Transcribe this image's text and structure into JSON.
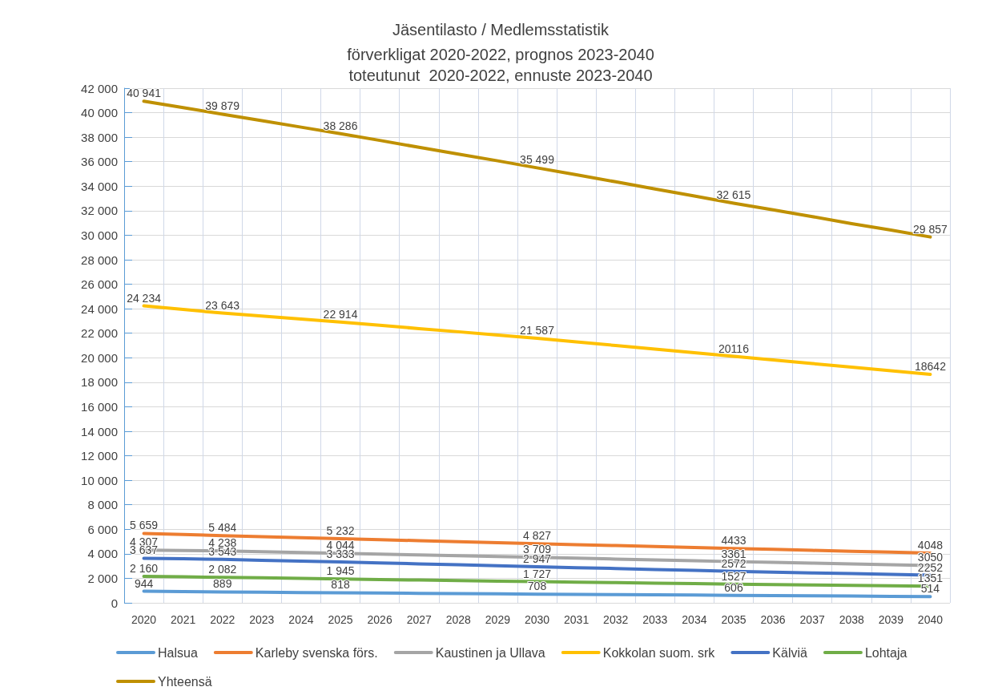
{
  "chart_data": {
    "type": "line",
    "title": "Jäsentilasto / Medlemsstatistik",
    "subtitle": "förverkligat 2020-2022, prognos 2023-2040\ntoteutunut  2020-2022, ennuste 2023-2040",
    "categories": [
      "2020",
      "2021",
      "2022",
      "2023",
      "2024",
      "2025",
      "2026",
      "2027",
      "2028",
      "2029",
      "2030",
      "2031",
      "2032",
      "2033",
      "2034",
      "2035",
      "2036",
      "2037",
      "2038",
      "2039",
      "2040"
    ],
    "series": [
      {
        "name": "Halsua",
        "color": "#5b9bd5",
        "values": [
          944,
          920,
          889,
          870,
          840,
          818,
          800,
          770,
          750,
          730,
          708,
          690,
          670,
          650,
          630,
          606,
          590,
          570,
          550,
          530,
          514
        ],
        "value_labels": [
          "944",
          null,
          "889",
          null,
          null,
          "818",
          null,
          null,
          null,
          null,
          "708",
          null,
          null,
          null,
          null,
          "606",
          null,
          null,
          null,
          null,
          "514"
        ]
      },
      {
        "name": "Karleby svenska förs.",
        "color": "#ed7d31",
        "values": [
          5659,
          5570,
          5484,
          5400,
          5320,
          5232,
          5150,
          5070,
          4990,
          4910,
          4827,
          4750,
          4670,
          4590,
          4510,
          4433,
          4360,
          4280,
          4200,
          4130,
          4048
        ],
        "value_labels": [
          "5 659",
          null,
          "5 484",
          null,
          null,
          "5 232",
          null,
          null,
          null,
          null,
          "4 827",
          null,
          null,
          null,
          null,
          "4433",
          null,
          null,
          null,
          null,
          "4048"
        ]
      },
      {
        "name": "Kaustinen ja Ullava",
        "color": "#a5a5a5",
        "values": [
          4307,
          4270,
          4238,
          4170,
          4110,
          4044,
          3980,
          3910,
          3840,
          3780,
          3709,
          3640,
          3570,
          3500,
          3430,
          3361,
          3300,
          3240,
          3170,
          3110,
          3050
        ],
        "value_labels": [
          "4 307",
          null,
          "4 238",
          null,
          null,
          "4 044",
          null,
          null,
          null,
          null,
          "3 709",
          null,
          null,
          null,
          null,
          "3361",
          null,
          null,
          null,
          null,
          "3050"
        ]
      },
      {
        "name": "Kokkolan suom. srk",
        "color": "#ffc000",
        "values": [
          24234,
          23940,
          23643,
          23400,
          23160,
          22914,
          22650,
          22380,
          22120,
          21850,
          21587,
          21290,
          21000,
          20700,
          20410,
          20116,
          19820,
          19530,
          19230,
          18940,
          18642
        ],
        "value_labels": [
          "24 234",
          null,
          "23 643",
          null,
          null,
          "22 914",
          null,
          null,
          null,
          null,
          "21 587",
          null,
          null,
          null,
          null,
          "20116",
          null,
          null,
          null,
          null,
          "18642"
        ]
      },
      {
        "name": "Kälviä",
        "color": "#4472c4",
        "values": [
          3637,
          3590,
          3543,
          3470,
          3400,
          3333,
          3260,
          3180,
          3100,
          3030,
          2947,
          2870,
          2800,
          2720,
          2650,
          2572,
          2510,
          2440,
          2380,
          2320,
          2252
        ],
        "value_labels": [
          "3 637",
          null,
          "3 543",
          null,
          null,
          "3 333",
          null,
          null,
          null,
          null,
          "2 947",
          null,
          null,
          null,
          null,
          "2572",
          null,
          null,
          null,
          null,
          "2252"
        ]
      },
      {
        "name": "Lohtaja",
        "color": "#70ad47",
        "values": [
          2160,
          2120,
          2082,
          2040,
          1990,
          1945,
          1900,
          1860,
          1820,
          1770,
          1727,
          1690,
          1650,
          1610,
          1570,
          1527,
          1490,
          1460,
          1420,
          1390,
          1351
        ],
        "value_labels": [
          "2 160",
          null,
          "2 082",
          null,
          null,
          "1 945",
          null,
          null,
          null,
          null,
          "1 727",
          null,
          null,
          null,
          null,
          "1527",
          null,
          null,
          null,
          null,
          "1351"
        ]
      },
      {
        "name": "Yhteensä",
        "color": "#bf9000",
        "values": [
          40941,
          40410,
          39879,
          39350,
          38820,
          38286,
          37740,
          37170,
          36620,
          36070,
          35499,
          34930,
          34360,
          33770,
          33200,
          32615,
          32070,
          31520,
          30950,
          30420,
          29857
        ],
        "value_labels": [
          "40 941",
          null,
          "39 879",
          null,
          null,
          "38 286",
          null,
          null,
          null,
          null,
          "35 499",
          null,
          null,
          null,
          null,
          "32 615",
          null,
          null,
          null,
          null,
          "29 857"
        ]
      }
    ],
    "ylim": [
      0,
      42000
    ],
    "yticks": [
      {
        "value": 0,
        "label": "0"
      },
      {
        "value": 2000,
        "label": "2 000"
      },
      {
        "value": 4000,
        "label": "4 000"
      },
      {
        "value": 6000,
        "label": "6 000"
      },
      {
        "value": 8000,
        "label": "8 000"
      },
      {
        "value": 10000,
        "label": "10 000"
      },
      {
        "value": 12000,
        "label": "12 000"
      },
      {
        "value": 14000,
        "label": "14 000"
      },
      {
        "value": 16000,
        "label": "16 000"
      },
      {
        "value": 18000,
        "label": "18 000"
      },
      {
        "value": 20000,
        "label": "20 000"
      },
      {
        "value": 22000,
        "label": "22 000"
      },
      {
        "value": 24000,
        "label": "24 000"
      },
      {
        "value": 26000,
        "label": "26 000"
      },
      {
        "value": 28000,
        "label": "28 000"
      },
      {
        "value": 30000,
        "label": "30 000"
      },
      {
        "value": 32000,
        "label": "32 000"
      },
      {
        "value": 34000,
        "label": "34 000"
      },
      {
        "value": 36000,
        "label": "36 000"
      },
      {
        "value": 38000,
        "label": "38 000"
      },
      {
        "value": 40000,
        "label": "40 000"
      },
      {
        "value": 42000,
        "label": "42 000"
      }
    ],
    "grid": true,
    "legend": "bottom",
    "marker": "none",
    "line_style": "solid"
  }
}
